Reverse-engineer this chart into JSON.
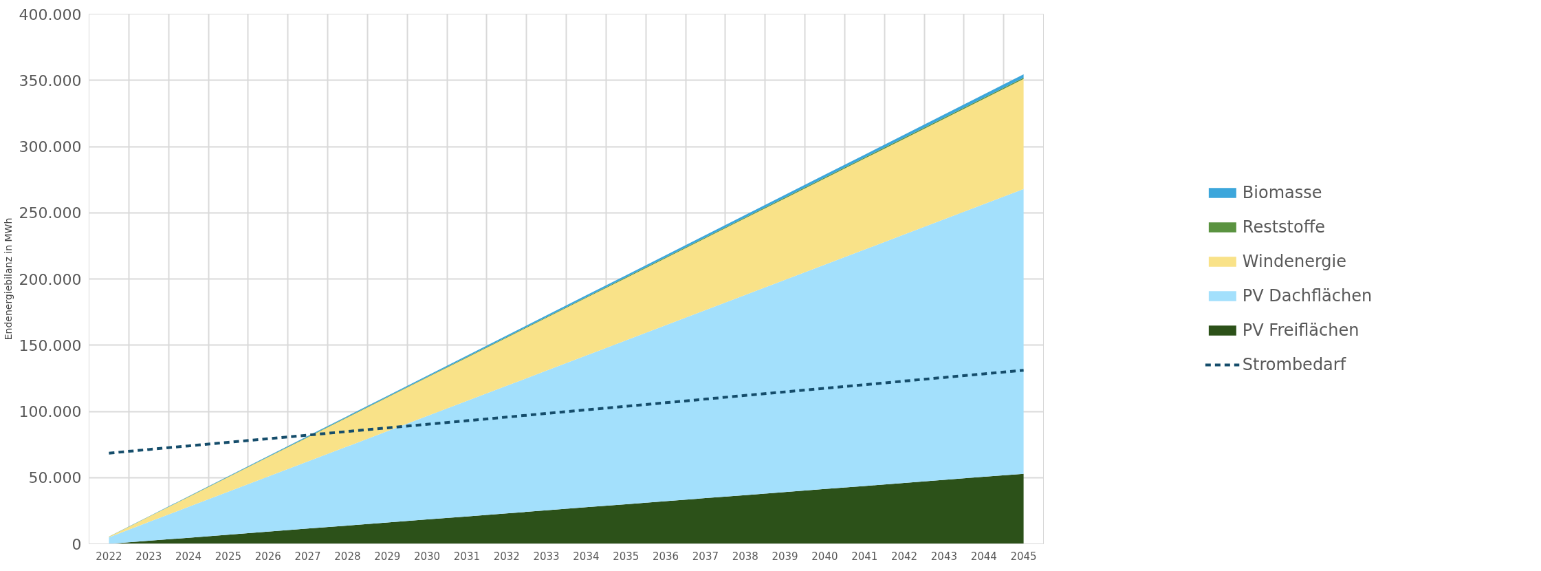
{
  "chart_data": {
    "type": "area",
    "stacked": true,
    "ylabel": "Endenergiebilanz in MWh",
    "categories": [
      "2022",
      "2023",
      "2024",
      "2025",
      "2026",
      "2027",
      "2028",
      "2029",
      "2030",
      "2031",
      "2032",
      "2033",
      "2034",
      "2035",
      "2036",
      "2037",
      "2038",
      "2039",
      "2040",
      "2041",
      "2042",
      "2043",
      "2044",
      "2045"
    ],
    "series": [
      {
        "name": "PV Freiflächen",
        "color": "#2c5119",
        "values": [
          0,
          2300,
          4600,
          6900,
          9200,
          11500,
          13800,
          16100,
          18400,
          20700,
          23000,
          25300,
          27600,
          29900,
          32200,
          34500,
          36800,
          39100,
          41400,
          43700,
          46000,
          48300,
          50600,
          52900
        ]
      },
      {
        "name": "PV Dachflächen",
        "color": "#a3e0fc",
        "values": [
          5000,
          14130,
          23260,
          32390,
          41520,
          50650,
          59780,
          68910,
          78040,
          87170,
          96300,
          105430,
          114560,
          123690,
          132820,
          141950,
          151080,
          160210,
          169340,
          178470,
          187600,
          196730,
          205860,
          214990
        ]
      },
      {
        "name": "Windenergie",
        "color": "#f9e288",
        "values": [
          300,
          3900,
          7500,
          11100,
          14700,
          18300,
          21900,
          25500,
          29100,
          32700,
          36300,
          39900,
          43500,
          47100,
          50700,
          54300,
          57900,
          61500,
          65100,
          68700,
          72300,
          75900,
          79500,
          83100
        ]
      },
      {
        "name": "Reststoffe",
        "color": "#5a9340",
        "values": [
          100,
          140,
          180,
          220,
          260,
          300,
          340,
          380,
          420,
          460,
          500,
          540,
          580,
          620,
          660,
          700,
          740,
          780,
          820,
          860,
          900,
          940,
          980,
          1020
        ]
      },
      {
        "name": "Biomasse",
        "color": "#3ca6db",
        "values": [
          100,
          205,
          310,
          415,
          520,
          625,
          730,
          835,
          940,
          1045,
          1150,
          1255,
          1360,
          1465,
          1570,
          1675,
          1780,
          1885,
          1990,
          2095,
          2200,
          2305,
          2410,
          2515
        ]
      },
      {
        "name": "Strombedarf",
        "type": "line",
        "line_style": "dashed",
        "color": "#154d6b",
        "values": [
          68500,
          71220,
          73940,
          76660,
          79380,
          82100,
          84820,
          87540,
          90260,
          92980,
          95700,
          98420,
          101140,
          103860,
          106580,
          109300,
          112020,
          114740,
          117460,
          120180,
          122900,
          125620,
          128340,
          131060
        ]
      }
    ],
    "ylim": [
      0,
      400000
    ],
    "yticks": [
      {
        "value": 0,
        "label": "0"
      },
      {
        "value": 50000,
        "label": "50.000"
      },
      {
        "value": 100000,
        "label": "100.000"
      },
      {
        "value": 150000,
        "label": "150.000"
      },
      {
        "value": 200000,
        "label": "200.000"
      },
      {
        "value": 250000,
        "label": "250.000"
      },
      {
        "value": 300000,
        "label": "300.000"
      },
      {
        "value": 350000,
        "label": "350.000"
      },
      {
        "value": 400000,
        "label": "400.000"
      }
    ],
    "grid": true,
    "legend": "right"
  }
}
